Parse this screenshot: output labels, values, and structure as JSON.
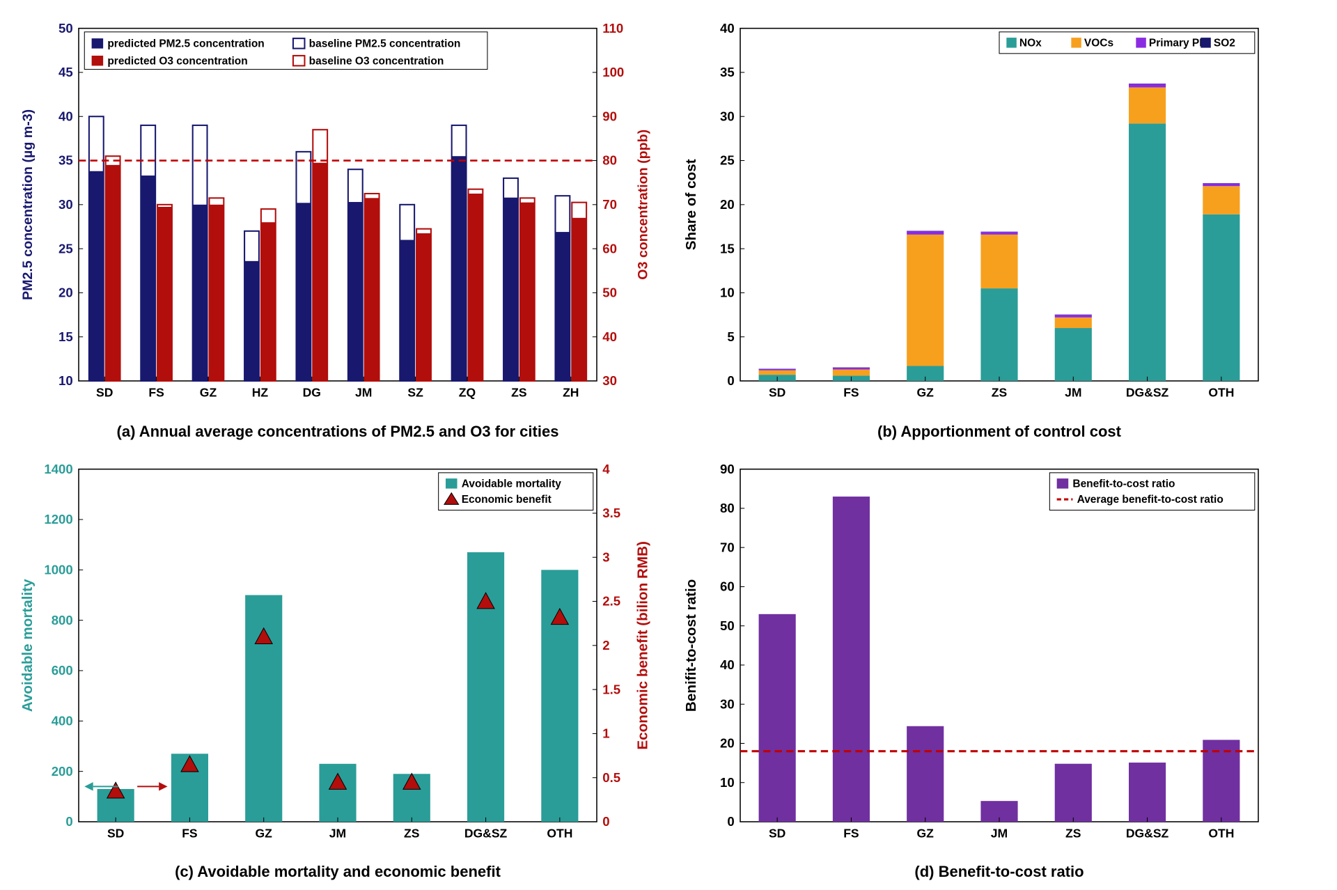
{
  "colors": {
    "navy": "#18186f",
    "red": "#b20e0c",
    "teal": "#2a9d98",
    "orange": "#f7a01e",
    "purple": "#8a2be2",
    "so2": "#18186f",
    "purple_bar": "#7030a0",
    "dashed_red": "#c00000"
  },
  "chartA": {
    "caption": "(a) Annual average concentrations of PM2.5 and O3  for cities",
    "legend": [
      "predicted PM2.5 concentration",
      "baseline PM2.5 concentration",
      "predicted O3 concentration",
      "baseline O3 concentration"
    ],
    "yleft_label": "PM2.5  concentration (µg m-3)",
    "yright_label": "O3 concentration (ppb)",
    "yleft_min": 10,
    "yleft_max": 50,
    "yleft_step": 5,
    "yright_min": 30,
    "yright_max": 110,
    "yright_step": 10,
    "cats": [
      "SD",
      "FS",
      "GZ",
      "HZ",
      "DG",
      "JM",
      "SZ",
      "ZQ",
      "ZS",
      "ZH"
    ],
    "pm25_pred": [
      33.8,
      33.3,
      30.0,
      23.6,
      30.2,
      30.3,
      26.0,
      35.5,
      30.8,
      26.9
    ],
    "pm25_base": [
      40.0,
      39.0,
      39.0,
      27.0,
      36.0,
      34.0,
      30.0,
      39.0,
      33.0,
      31.0
    ],
    "o3_pred": [
      79.0,
      69.5,
      70.0,
      66.0,
      79.5,
      71.5,
      63.5,
      72.5,
      70.5,
      67.0
    ],
    "o3_base": [
      81.0,
      70.0,
      71.5,
      69.0,
      87.0,
      72.5,
      64.5,
      73.5,
      71.5,
      70.5
    ],
    "ref_pm25": 35,
    "ref_o3": 80
  },
  "chartB": {
    "caption": "(b) Apportionment of control cost",
    "y_label": "Share of cost",
    "ymin": 0,
    "ymax": 40,
    "ystep": 5,
    "legend": [
      "NOx",
      "VOCs",
      "Primary PM",
      "SO2"
    ],
    "cats": [
      "SD",
      "FS",
      "GZ",
      "ZS",
      "JM",
      "DG&SZ",
      "OTH"
    ],
    "nox": [
      0.7,
      0.6,
      1.7,
      10.5,
      6.0,
      29.2,
      18.9
    ],
    "vocs": [
      0.5,
      0.7,
      14.9,
      6.1,
      1.2,
      4.1,
      3.2
    ],
    "ppm": [
      0.15,
      0.2,
      0.4,
      0.3,
      0.3,
      0.4,
      0.3
    ],
    "so2": [
      0.03,
      0.03,
      0.03,
      0.03,
      0.03,
      0.03,
      0.03
    ]
  },
  "chartC": {
    "caption": "(c) Avoidable mortality and economic benefit",
    "yleft_label": "Avoidable  mortality",
    "yright_label": "Economic benefit (bilion RMB)",
    "yleft_min": 0,
    "yleft_max": 1400,
    "yleft_step": 200,
    "yright_min": 0,
    "yright_max": 4,
    "yright_step": 0.5,
    "legend": [
      "Avoidable mortality",
      "Economic benefit"
    ],
    "cats": [
      "SD",
      "FS",
      "GZ",
      "JM",
      "ZS",
      "DG&SZ",
      "OTH"
    ],
    "mort": [
      130,
      270,
      900,
      230,
      190,
      1070,
      1000
    ],
    "econ": [
      0.35,
      0.65,
      2.1,
      0.45,
      0.45,
      2.5,
      2.32
    ]
  },
  "chartD": {
    "caption": "(d) Benefit-to-cost ratio",
    "y_label": "Benifit-to-cost ratio",
    "ymin": 0,
    "ymax": 90,
    "ystep": 10,
    "legend": [
      "Benefit-to-cost ratio",
      "Average benefit-to-cost ratio"
    ],
    "cats": [
      "SD",
      "FS",
      "GZ",
      "JM",
      "ZS",
      "DG&SZ",
      "OTH"
    ],
    "vals": [
      53,
      83,
      24.4,
      5.3,
      14.8,
      15.1,
      20.9
    ],
    "avg": 18
  }
}
